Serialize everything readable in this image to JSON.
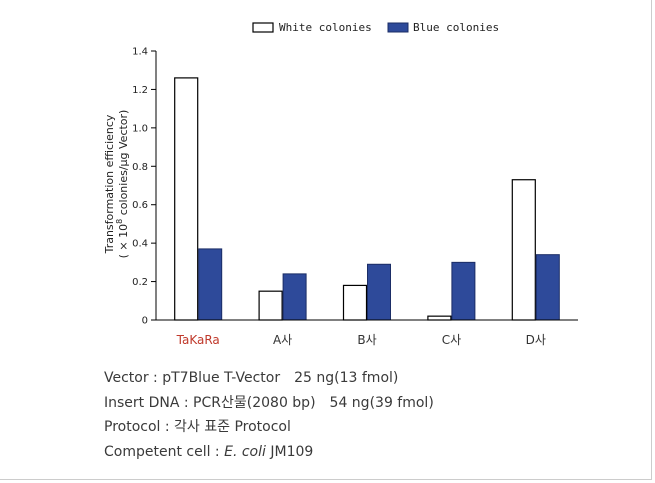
{
  "chart_data": {
    "type": "bar",
    "categories": [
      "TaKaRa",
      "A사",
      "B사",
      "C사",
      "D사"
    ],
    "series": [
      {
        "name": "White colonies",
        "color": "#ffffff",
        "values": [
          1.26,
          0.15,
          0.18,
          0.02,
          0.73
        ]
      },
      {
        "name": "Blue colonies",
        "color": "#2e4a9a",
        "values": [
          0.37,
          0.24,
          0.29,
          0.3,
          0.34
        ]
      }
    ],
    "ylim": [
      0,
      1.4
    ],
    "yticks": [
      "0",
      "0.2",
      "0.4",
      "0.6",
      "0.8",
      "1.0",
      "1.2",
      "1.4"
    ],
    "ytick_values": [
      0,
      0.2,
      0.4,
      0.6,
      0.8,
      1.0,
      1.2,
      1.4
    ],
    "ylabel_line1": "Transformation efficiency",
    "ylabel_line2_prefix": "( × 10",
    "ylabel_line2_sup": "8",
    "ylabel_line2_suffix": " colonies/μg Vector)",
    "legend_position": "top",
    "highlight_category_color": "#c0392b",
    "grid": false
  },
  "notes": {
    "vector_label": "Vector : pT7Blue T-Vector",
    "vector_amount": "25 ng(13 fmol)",
    "insert_label": "Insert DNA : PCR산물(2080 bp)",
    "insert_amount": "54 ng(39 fmol)",
    "protocol": "Protocol : 각사 표준 Protocol",
    "cell_label": "Competent cell : ",
    "cell_species": "E. coli",
    "cell_strain": " JM109"
  }
}
